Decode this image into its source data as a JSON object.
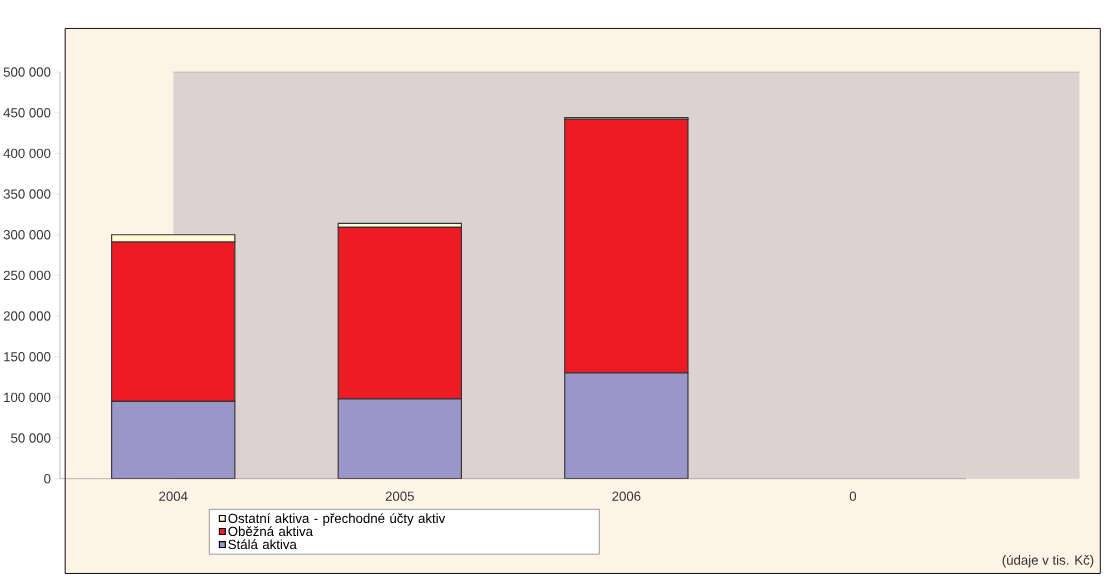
{
  "chart_data": {
    "type": "bar",
    "stacked": true,
    "categories": [
      "2004",
      "2005",
      "2006",
      "0"
    ],
    "series": [
      {
        "name": "Stálá aktiva",
        "color": "#9b96c8",
        "values": [
          95000,
          98000,
          130000,
          0
        ]
      },
      {
        "name": "Oběžná aktiva",
        "color": "#ed1c24",
        "values": [
          196000,
          211000,
          312000,
          0
        ]
      },
      {
        "name": "Ostatní aktiva - přechodné účty aktiv",
        "color": "#fffbd6",
        "values": [
          9000,
          5000,
          2000,
          0
        ]
      }
    ],
    "ylim": [
      0,
      500000
    ],
    "yticks": [
      0,
      {
        "value": 50000,
        "label": "50 000"
      },
      {
        "value": 100000,
        "label": "100 000"
      },
      {
        "value": 150000,
        "label": "150 000"
      },
      {
        "value": 200000,
        "label": "200 000"
      },
      {
        "value": 250000,
        "label": "250 000"
      },
      {
        "value": 300000,
        "label": "300 000"
      },
      {
        "value": 350000,
        "label": "350 000"
      },
      {
        "value": 400000,
        "label": "400 000"
      },
      {
        "value": 450000,
        "label": "450 000"
      },
      {
        "value": 500000,
        "label": "500 000"
      }
    ],
    "legend": "bottom",
    "grid": false,
    "annotations": [
      "(údaje v tis. Kč)"
    ]
  }
}
